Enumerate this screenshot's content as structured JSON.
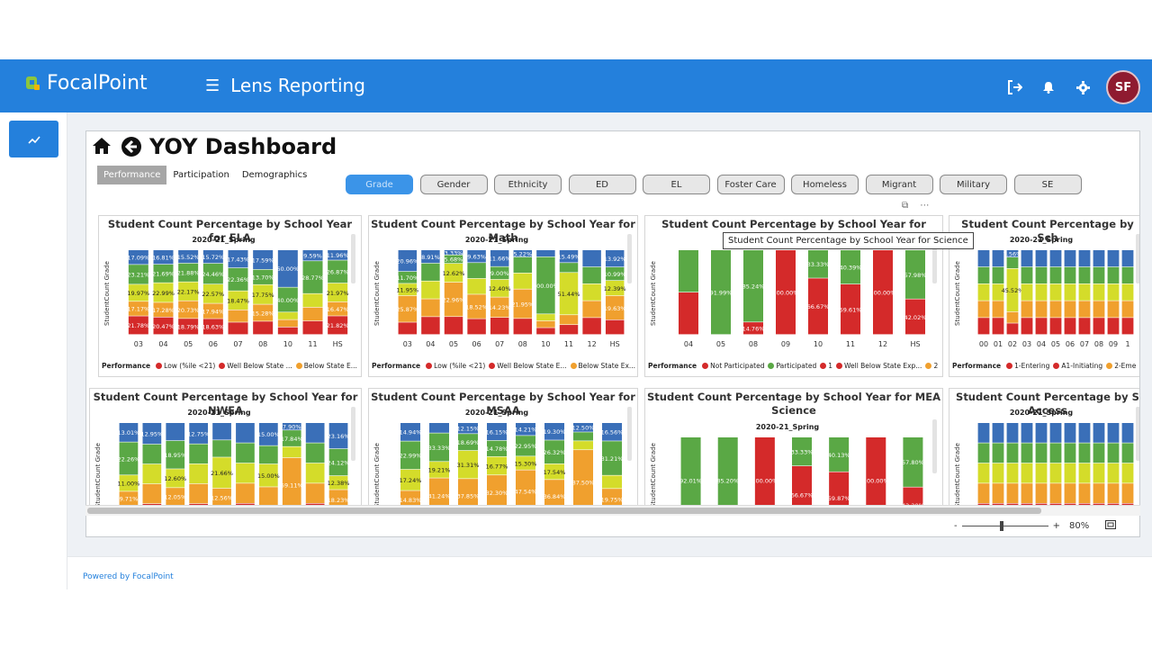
{
  "app": {
    "name": "FocalPoint",
    "section": "Lens Reporting",
    "user_initials": "SF"
  },
  "footer": {
    "powered": "Powered by FocalPoint"
  },
  "report": {
    "title": "YOY Dashboard",
    "tabs": [
      "Performance",
      "Participation",
      "Demographics"
    ],
    "filters": [
      "Grade",
      "Gender",
      "Ethnicity",
      "ED",
      "EL",
      "Foster Care",
      "Homeless",
      "Migrant",
      "Military",
      "SE"
    ],
    "tooltip": "Student Count Percentage by School Year for Science",
    "zoom": "80%"
  },
  "colors": {
    "blue": "#3a6fb8",
    "green": "#5aa845",
    "yellow": "#d4dc2a",
    "orange": "#f0a02e",
    "red": "#d42a2a",
    "brand": "#2480dc"
  },
  "cards": [
    {
      "title": "Student Count Percentage by School Year for ELA",
      "subtitle": "2020-21_Spring",
      "ylabel": "StudentCount Grade",
      "categories": [
        "03",
        "04",
        "05",
        "06",
        "07",
        "08",
        "10",
        "11",
        "HS"
      ],
      "labels": [
        [
          "17.09%",
          "23.21%",
          "19.97%",
          "17.17%",
          "21.78%"
        ],
        [
          "16.81%",
          "21.69%",
          "22.99%",
          "17.28%",
          "20.47%"
        ],
        [
          "15.52%",
          "21.88%",
          "22.17%",
          "20.73%",
          "18.79%"
        ],
        [
          "15.72%",
          "24.46%",
          "22.57%",
          "17.94%",
          "18.63%"
        ],
        [
          "17.43%",
          "22.36%",
          "18.47%",
          "",
          ""
        ],
        [
          "17.59%",
          "13.70%",
          "17.75%",
          "15.28%",
          ""
        ],
        [
          "60.00%",
          "40.00%",
          "",
          "",
          ""
        ],
        [
          "9.59%",
          "28.77%",
          "",
          "",
          ""
        ],
        [
          "11.96%",
          "26.87%",
          "21.97%",
          "16.47%",
          "21.82%"
        ]
      ],
      "legend_title": "Performance",
      "legend": [
        {
          "label": "Low (%ile <21)",
          "color": "red"
        },
        {
          "label": "Well Below State ...",
          "color": "red"
        },
        {
          "label": "Below State E...",
          "color": "orange"
        }
      ]
    },
    {
      "title": "Student Count Percentage by School Year for Math",
      "subtitle": "2020-21_Spring",
      "ylabel": "StudentCount Grade",
      "categories": [
        "03",
        "04",
        "05",
        "06",
        "07",
        "08",
        "10",
        "11",
        "12",
        "HS"
      ],
      "labels": [
        [
          "20.96%",
          "11.70%",
          "11.95%",
          "25.87%"
        ],
        [
          "8.91%",
          "",
          "",
          ""
        ],
        [
          "3.33%",
          "5.68%",
          "12.62%",
          "22.96%"
        ],
        [
          "9.63%",
          "",
          "",
          "18.52%"
        ],
        [
          "11.66%",
          "9.00%",
          "12.40%",
          "14.23%"
        ],
        [
          "5.22%",
          "",
          "",
          "21.95%"
        ],
        [
          "",
          "100.00%",
          "",
          ""
        ],
        [
          "15.49%",
          "",
          "51.44%",
          ""
        ],
        [
          "",
          "",
          "",
          ""
        ],
        [
          "13.92%",
          "10.99%",
          "12.39%",
          "19.63%"
        ]
      ],
      "legend_title": "Performance",
      "legend": [
        {
          "label": "Low (%ile <21)",
          "color": "red"
        },
        {
          "label": "Well Below State E...",
          "color": "red"
        },
        {
          "label": "Below State Ex...",
          "color": "orange"
        }
      ]
    },
    {
      "title": "Student Count Percentage by School Year for Science",
      "subtitle": "",
      "ylabel": "StudentCount Grade",
      "categories": [
        "04",
        "05",
        "08",
        "09",
        "10",
        "11",
        "12",
        "HS"
      ],
      "labels": [
        [
          "",
          ""
        ],
        [
          "91.99%",
          ""
        ],
        [
          "85.24%",
          "14.76%"
        ],
        [
          "",
          "100.00%"
        ],
        [
          "33.33%",
          "66.67%"
        ],
        [
          "40.39%",
          "59.61%"
        ],
        [
          "",
          "100.00%"
        ],
        [
          "57.98%",
          "42.02%"
        ]
      ],
      "legend_title": "Performance",
      "legend": [
        {
          "label": "Not Participated",
          "color": "red"
        },
        {
          "label": "Participated",
          "color": "green"
        },
        {
          "label": "1",
          "color": "red"
        },
        {
          "label": "Well Below State Exp...",
          "color": "red"
        },
        {
          "label": "2",
          "color": "orange"
        }
      ]
    },
    {
      "title": "Student Count Percentage by Sch",
      "subtitle": "2020-21_Spring",
      "ylabel": "StudentCount Grade",
      "categories": [
        "00",
        "01",
        "02",
        "03",
        "04",
        "05",
        "06",
        "07",
        "08",
        "09",
        "1"
      ],
      "labels": [
        [
          "",
          "",
          "",
          "",
          ""
        ],
        [
          "",
          "",
          "",
          "",
          ""
        ],
        [
          "7.56%",
          "",
          "45.52%",
          "",
          ""
        ],
        [
          "",
          "",
          "",
          "",
          ""
        ],
        [
          "",
          "",
          "",
          "",
          ""
        ],
        [
          "",
          "",
          "",
          "",
          ""
        ],
        [
          "",
          "",
          "",
          "",
          ""
        ],
        [
          "",
          "",
          "",
          "",
          ""
        ],
        [
          "",
          "",
          "",
          "",
          ""
        ],
        [
          "",
          "",
          "",
          "",
          ""
        ],
        [
          "",
          "",
          "",
          "",
          ""
        ]
      ],
      "legend_title": "Performance",
      "legend": [
        {
          "label": "1-Entering",
          "color": "red"
        },
        {
          "label": "A1-Initiating",
          "color": "red"
        },
        {
          "label": "2-Eme",
          "color": "orange"
        }
      ]
    },
    {
      "title": "Student Count Percentage by School Year for NWEA",
      "subtitle": "2020-21_Spring",
      "ylabel": "StudentCount Grade",
      "labels": [
        [
          "13.01%",
          "22.26%",
          "11.00%",
          "9.71%"
        ],
        [
          "12.95%",
          "",
          "",
          ""
        ],
        [
          "",
          "18.95%",
          "12.60%",
          "12.05%"
        ],
        [
          "12.75%",
          "",
          "",
          ""
        ],
        [
          "",
          "",
          "21.66%",
          "12.56%"
        ],
        [
          "",
          "",
          "",
          ""
        ],
        [
          "15.00%",
          "",
          "15.00%",
          ""
        ],
        [
          "7.90%",
          "17.84%",
          "",
          "59.11%"
        ],
        [
          "",
          "",
          "",
          ""
        ],
        [
          "23.16%",
          "24.12%",
          "12.38%",
          "18.23%"
        ]
      ]
    },
    {
      "title": "Student Count Percentage by School Year for MSAA",
      "subtitle": "2020-21_Spring",
      "ylabel": "StudentCount Grade",
      "labels": [
        [
          "14.94%",
          "22.99%",
          "17.24%",
          "14.83%"
        ],
        [
          "",
          "33.33%",
          "19.21%",
          "41.24%"
        ],
        [
          "12.15%",
          "18.69%",
          "31.31%",
          "37.85%"
        ],
        [
          "16.15%",
          "14.78%",
          "16.77%",
          "32.30%"
        ],
        [
          "14.21%",
          "22.95%",
          "15.30%",
          "47.54%"
        ],
        [
          "19.30%",
          "26.32%",
          "17.54%",
          "36.84%"
        ],
        [
          "12.50%",
          "",
          "",
          "87.50%"
        ],
        [
          "16.56%",
          "31.21%",
          "",
          "19.75%"
        ]
      ]
    },
    {
      "title": "Student Count Percentage by School Year for MEA Science",
      "subtitle": "2020-21_Spring",
      "ylabel": "StudentCount Grade",
      "labels": [
        [
          "92.01%",
          ""
        ],
        [
          "85.20%",
          ""
        ],
        [
          "",
          "100.00%"
        ],
        [
          "33.33%",
          "66.67%"
        ],
        [
          "40.13%",
          "59.87%"
        ],
        [
          "",
          "100.00%"
        ],
        [
          "57.80%",
          "42.20%"
        ]
      ]
    },
    {
      "title": "Student Count Percentage by S Access",
      "subtitle": "2020-21_Spring",
      "ylabel": "StudentCount Grade",
      "labels": []
    }
  ]
}
